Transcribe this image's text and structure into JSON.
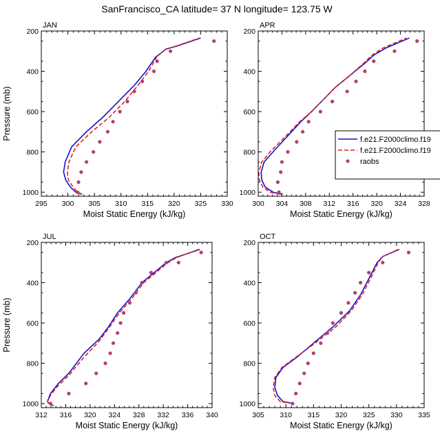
{
  "figure": {
    "title": "SanFrancisco_CA  latitude= 37 N longitude= 123.75 W"
  },
  "legend": {
    "entries": [
      {
        "label": "f.e21.F2000climo.f19",
        "color": "#1010cc",
        "style": "solid"
      },
      {
        "label": "f.e21.F2000climo.f19",
        "color": "#e02020",
        "style": "dashed"
      },
      {
        "label": "raobs",
        "color": "#b04070",
        "style": "marker"
      }
    ]
  },
  "chart_data": [
    {
      "type": "line",
      "panel": "JAN",
      "title": "JAN",
      "xlabel": "Moist Static Energy (kJ/kg)",
      "ylabel": "Pressure (mb)",
      "xlim": [
        295,
        330
      ],
      "ylim": [
        1020,
        200
      ],
      "xticks": [
        295,
        300,
        305,
        310,
        315,
        320,
        325,
        330
      ],
      "yticks": [
        200,
        400,
        600,
        800,
        1000
      ],
      "series": [
        {
          "style": "solid",
          "color": "#1010cc",
          "points": [
            [
              302.5,
              1010
            ],
            [
              301.5,
              1000
            ],
            [
              300.5,
              975
            ],
            [
              299.6,
              940
            ],
            [
              299.2,
              900
            ],
            [
              299.5,
              850
            ],
            [
              300.7,
              775
            ],
            [
              303.5,
              700
            ],
            [
              306.5,
              630
            ],
            [
              309.5,
              550
            ],
            [
              312.5,
              470
            ],
            [
              314.7,
              400
            ],
            [
              316.5,
              330
            ],
            [
              318.5,
              290
            ],
            [
              320.5,
              275
            ],
            [
              325.0,
              235
            ]
          ]
        },
        {
          "style": "dashed",
          "color": "#e02020",
          "points": [
            [
              302.7,
              1010
            ],
            [
              301.8,
              1000
            ],
            [
              301.0,
              975
            ],
            [
              300.1,
              940
            ],
            [
              299.9,
              900
            ],
            [
              300.2,
              850
            ],
            [
              301.5,
              775
            ],
            [
              304.5,
              700
            ],
            [
              307.7,
              630
            ],
            [
              310.7,
              550
            ],
            [
              313.2,
              470
            ],
            [
              315.2,
              400
            ],
            [
              316.7,
              330
            ],
            [
              318.4,
              290
            ],
            [
              320.3,
              275
            ],
            [
              324.8,
              235
            ]
          ]
        }
      ],
      "obs": [
        [
          301.8,
          1000
        ],
        [
          302.0,
          950
        ],
        [
          302.5,
          900
        ],
        [
          303.5,
          850
        ],
        [
          304.8,
          800
        ],
        [
          306.0,
          750
        ],
        [
          307.5,
          700
        ],
        [
          308.5,
          650
        ],
        [
          309.8,
          600
        ],
        [
          311.2,
          550
        ],
        [
          312.5,
          500
        ],
        [
          314.0,
          450
        ],
        [
          316.2,
          400
        ],
        [
          316.8,
          350
        ],
        [
          319.3,
          300
        ],
        [
          327.5,
          250
        ]
      ]
    },
    {
      "type": "line",
      "panel": "APR",
      "title": "APR",
      "xlabel": "Moist Static Energy (kJ/kg)",
      "ylabel": "Pressure (mb)",
      "xlim": [
        300,
        328
      ],
      "ylim": [
        1020,
        200
      ],
      "xticks": [
        300,
        304,
        308,
        312,
        316,
        320,
        324,
        328
      ],
      "yticks": [
        200,
        400,
        600,
        800,
        1000
      ],
      "series": [
        {
          "style": "solid",
          "color": "#1010cc",
          "points": [
            [
              304.0,
              1010
            ],
            [
              302.5,
              1000
            ],
            [
              301.2,
              975
            ],
            [
              300.6,
              940
            ],
            [
              300.5,
              900
            ],
            [
              301.0,
              850
            ],
            [
              302.5,
              800
            ],
            [
              305.0,
              720
            ],
            [
              307.2,
              650
            ],
            [
              309.0,
              600
            ],
            [
              311.0,
              540
            ],
            [
              313.0,
              480
            ],
            [
              315.5,
              420
            ],
            [
              318.0,
              360
            ],
            [
              319.5,
              320
            ],
            [
              321.5,
              285
            ],
            [
              325.5,
              235
            ]
          ]
        },
        {
          "style": "dashed",
          "color": "#e02020",
          "points": [
            [
              303.7,
              1010
            ],
            [
              302.0,
              1000
            ],
            [
              300.8,
              975
            ],
            [
              300.2,
              940
            ],
            [
              300.1,
              900
            ],
            [
              300.6,
              850
            ],
            [
              302.0,
              800
            ],
            [
              304.7,
              720
            ],
            [
              307.0,
              650
            ],
            [
              309.0,
              600
            ],
            [
              311.0,
              540
            ],
            [
              313.0,
              480
            ],
            [
              315.5,
              420
            ],
            [
              317.8,
              360
            ],
            [
              319.2,
              320
            ],
            [
              321.0,
              285
            ],
            [
              325.0,
              235
            ]
          ]
        }
      ],
      "obs": [
        [
          303.5,
          1000
        ],
        [
          303.3,
          950
        ],
        [
          303.8,
          900
        ],
        [
          304.0,
          850
        ],
        [
          305.0,
          800
        ],
        [
          306.5,
          750
        ],
        [
          307.5,
          700
        ],
        [
          308.5,
          650
        ],
        [
          310.5,
          600
        ],
        [
          312.5,
          550
        ],
        [
          315.0,
          500
        ],
        [
          316.5,
          450
        ],
        [
          318.0,
          400
        ],
        [
          319.5,
          350
        ],
        [
          323.0,
          300
        ],
        [
          326.8,
          250
        ]
      ]
    },
    {
      "type": "line",
      "panel": "JUL",
      "title": "JUL",
      "xlabel": "Moist Static Energy (kJ/kg)",
      "ylabel": "Pressure (mb)",
      "xlim": [
        312,
        340
      ],
      "ylim": [
        1020,
        200
      ],
      "xticks": [
        312,
        316,
        320,
        324,
        328,
        332,
        336,
        340
      ],
      "yticks": [
        200,
        400,
        600,
        800,
        1000
      ],
      "series": [
        {
          "style": "solid",
          "color": "#1010cc",
          "points": [
            [
              314.0,
              1010
            ],
            [
              313.5,
              1005
            ],
            [
              313.0,
              990
            ],
            [
              313.5,
              950
            ],
            [
              314.8,
              900
            ],
            [
              316.5,
              850
            ],
            [
              319.0,
              750
            ],
            [
              321.5,
              680
            ],
            [
              323.0,
              620
            ],
            [
              324.5,
              550
            ],
            [
              326.5,
              480
            ],
            [
              328.5,
              400
            ],
            [
              330.5,
              350
            ],
            [
              332.5,
              300
            ],
            [
              334.0,
              275
            ],
            [
              338.0,
              235
            ]
          ]
        },
        {
          "style": "dashed",
          "color": "#e02020",
          "points": [
            [
              313.2,
              1000
            ],
            [
              313.0,
              990
            ],
            [
              313.5,
              960
            ],
            [
              314.5,
              920
            ],
            [
              316.5,
              860
            ],
            [
              319.0,
              770
            ],
            [
              321.5,
              690
            ],
            [
              323.2,
              620
            ],
            [
              324.8,
              550
            ],
            [
              326.8,
              480
            ],
            [
              328.8,
              400
            ],
            [
              330.8,
              350
            ],
            [
              332.8,
              300
            ],
            [
              334.2,
              275
            ],
            [
              337.8,
              235
            ]
          ]
        }
      ],
      "obs": [
        [
          313.5,
          1000
        ],
        [
          316.5,
          950
        ],
        [
          319.3,
          900
        ],
        [
          321.0,
          850
        ],
        [
          322.5,
          800
        ],
        [
          323.3,
          750
        ],
        [
          323.8,
          700
        ],
        [
          324.5,
          650
        ],
        [
          325.0,
          600
        ],
        [
          325.5,
          550
        ],
        [
          326.5,
          500
        ],
        [
          327.5,
          450
        ],
        [
          328.5,
          400
        ],
        [
          330.0,
          350
        ],
        [
          332.5,
          300
        ],
        [
          334.5,
          300
        ],
        [
          338.2,
          250
        ]
      ]
    },
    {
      "type": "line",
      "panel": "OCT",
      "title": "OCT",
      "xlabel": "Moist Static Energy (kJ/kg)",
      "ylabel": "Pressure (mb)",
      "xlim": [
        305,
        335
      ],
      "ylim": [
        1020,
        200
      ],
      "xticks": [
        305,
        310,
        315,
        320,
        325,
        330,
        335
      ],
      "yticks": [
        200,
        400,
        600,
        800,
        1000
      ],
      "series": [
        {
          "style": "solid",
          "color": "#1010cc",
          "points": [
            [
              311.5,
              1000
            ],
            [
              309.5,
              990
            ],
            [
              308.5,
              960
            ],
            [
              308.0,
              920
            ],
            [
              308.2,
              870
            ],
            [
              309.5,
              820
            ],
            [
              312.0,
              770
            ],
            [
              315.0,
              700
            ],
            [
              318.5,
              620
            ],
            [
              321.5,
              540
            ],
            [
              323.5,
              460
            ],
            [
              325.0,
              380
            ],
            [
              326.5,
              300
            ],
            [
              327.5,
              270
            ],
            [
              330.5,
              235
            ]
          ]
        },
        {
          "style": "dashed",
          "color": "#e02020",
          "points": [
            [
              311.3,
              1000
            ],
            [
              309.0,
              990
            ],
            [
              308.0,
              960
            ],
            [
              307.7,
              920
            ],
            [
              308.0,
              870
            ],
            [
              309.3,
              820
            ],
            [
              311.8,
              770
            ],
            [
              315.3,
              700
            ],
            [
              319.0,
              620
            ],
            [
              321.8,
              540
            ],
            [
              323.8,
              460
            ],
            [
              325.3,
              380
            ],
            [
              326.7,
              300
            ],
            [
              327.5,
              270
            ],
            [
              330.3,
              235
            ]
          ]
        }
      ],
      "obs": [
        [
          311.2,
          1000
        ],
        [
          311.8,
          950
        ],
        [
          312.5,
          900
        ],
        [
          313.3,
          850
        ],
        [
          314.0,
          800
        ],
        [
          315.0,
          750
        ],
        [
          316.3,
          700
        ],
        [
          317.5,
          650
        ],
        [
          318.5,
          600
        ],
        [
          320.0,
          550
        ],
        [
          321.3,
          500
        ],
        [
          322.5,
          450
        ],
        [
          323.5,
          400
        ],
        [
          325.0,
          350
        ],
        [
          327.5,
          300
        ],
        [
          332.2,
          250
        ]
      ]
    }
  ]
}
